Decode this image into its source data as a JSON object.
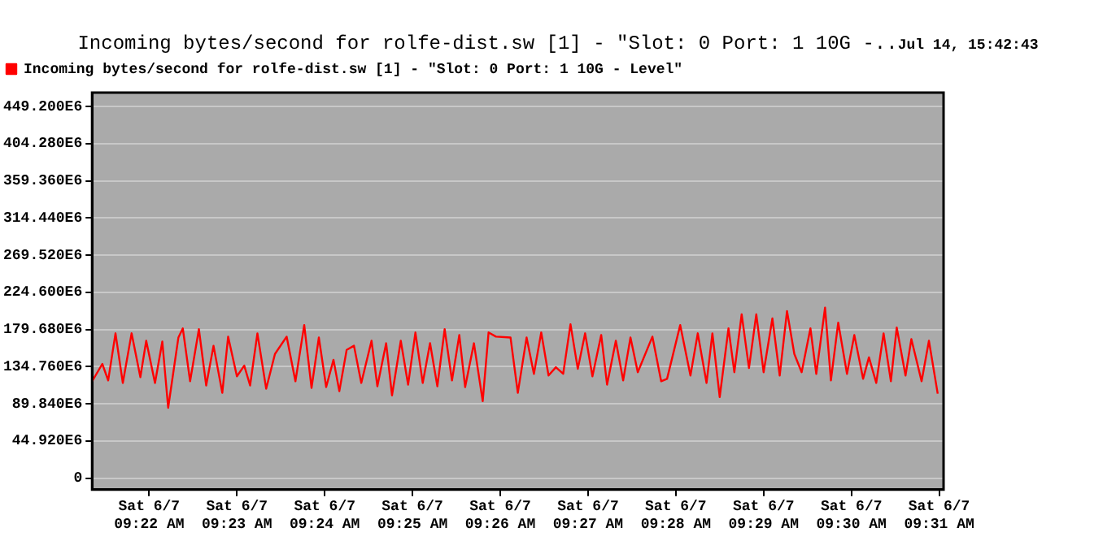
{
  "chart_data": {
    "type": "line",
    "title": "Incoming bytes/second for rolfe-dist.sw [1] - \"Slot: 0 Port: 1 10G -..",
    "subtitle": "Jul 14, 15:42:43",
    "x": [
      "--06-07T09:21:21",
      "--06-07T09:21:28",
      "--06-07T09:21:32",
      "--06-07T09:21:37",
      "--06-07T09:21:42",
      "--06-07T09:21:48",
      "--06-07T09:21:54",
      "--06-07T09:21:58",
      "--06-07T09:22:04",
      "--06-07T09:22:09",
      "--06-07T09:22:13",
      "--06-07T09:22:20",
      "--06-07T09:22:23",
      "--06-07T09:22:28",
      "--06-07T09:22:34",
      "--06-07T09:22:39",
      "--06-07T09:22:44",
      "--06-07T09:22:50",
      "--06-07T09:22:54",
      "--06-07T09:23:00",
      "--06-07T09:23:05",
      "--06-07T09:23:09",
      "--06-07T09:23:14",
      "--06-07T09:23:20",
      "--06-07T09:23:26",
      "--06-07T09:23:34",
      "--06-07T09:23:40",
      "--06-07T09:23:46",
      "--06-07T09:23:51",
      "--06-07T09:23:56",
      "--06-07T09:24:01",
      "--06-07T09:24:06",
      "--06-07T09:24:10",
      "--06-07T09:24:15",
      "--06-07T09:24:20",
      "--06-07T09:24:25",
      "--06-07T09:24:32",
      "--06-07T09:24:36",
      "--06-07T09:24:42",
      "--06-07T09:24:46",
      "--06-07T09:24:52",
      "--06-07T09:24:57",
      "--06-07T09:25:02",
      "--06-07T09:25:07",
      "--06-07T09:25:12",
      "--06-07T09:25:17",
      "--06-07T09:25:22",
      "--06-07T09:25:27",
      "--06-07T09:25:32",
      "--06-07T09:25:36",
      "--06-07T09:25:42",
      "--06-07T09:25:48",
      "--06-07T09:25:52",
      "--06-07T09:25:57",
      "--06-07T09:26:07",
      "--06-07T09:26:12",
      "--06-07T09:26:18",
      "--06-07T09:26:23",
      "--06-07T09:26:28",
      "--06-07T09:26:33",
      "--06-07T09:26:38",
      "--06-07T09:26:43",
      "--06-07T09:26:48",
      "--06-07T09:26:53",
      "--06-07T09:26:58",
      "--06-07T09:27:03",
      "--06-07T09:27:09",
      "--06-07T09:27:13",
      "--06-07T09:27:19",
      "--06-07T09:27:24",
      "--06-07T09:27:29",
      "--06-07T09:27:34",
      "--06-07T09:27:44",
      "--06-07T09:27:50",
      "--06-07T09:27:54",
      "--06-07T09:28:03",
      "--06-07T09:28:10",
      "--06-07T09:28:15",
      "--06-07T09:28:21",
      "--06-07T09:28:25",
      "--06-07T09:28:30",
      "--06-07T09:28:36",
      "--06-07T09:28:40",
      "--06-07T09:28:45",
      "--06-07T09:28:50",
      "--06-07T09:28:55",
      "--06-07T09:29:00",
      "--06-07T09:29:06",
      "--06-07T09:29:11",
      "--06-07T09:29:16",
      "--06-07T09:29:21",
      "--06-07T09:29:26",
      "--06-07T09:29:32",
      "--06-07T09:29:36",
      "--06-07T09:29:42",
      "--06-07T09:29:46",
      "--06-07T09:29:51",
      "--06-07T09:29:57",
      "--06-07T09:30:02",
      "--06-07T09:30:08",
      "--06-07T09:30:12",
      "--06-07T09:30:17",
      "--06-07T09:30:22",
      "--06-07T09:30:27",
      "--06-07T09:30:31",
      "--06-07T09:30:37",
      "--06-07T09:30:41",
      "--06-07T09:30:48",
      "--06-07T09:30:53",
      "--06-07T09:30:59"
    ],
    "series": [
      {
        "name": "Incoming bytes/second for rolfe-dist.sw [1] - \"Slot: 0 Port: 1 10G - Level\"",
        "color": "#ff0000",
        "values": [
          117000000,
          138000000,
          118000000,
          175000000,
          115000000,
          175000000,
          122000000,
          166000000,
          115000000,
          165000000,
          85000000,
          170000000,
          181000000,
          117000000,
          180000000,
          112000000,
          160000000,
          103000000,
          171000000,
          123000000,
          136000000,
          112000000,
          175000000,
          108000000,
          150000000,
          171000000,
          117000000,
          185000000,
          109000000,
          170000000,
          110000000,
          143000000,
          105000000,
          155000000,
          160000000,
          115000000,
          166000000,
          111000000,
          163000000,
          100000000,
          166000000,
          113000000,
          176000000,
          115000000,
          163000000,
          111000000,
          180000000,
          118000000,
          173000000,
          110000000,
          163000000,
          93000000,
          176000000,
          171000000,
          170000000,
          103000000,
          170000000,
          126000000,
          176000000,
          124000000,
          134000000,
          126000000,
          186000000,
          132000000,
          175000000,
          123000000,
          173000000,
          113000000,
          166000000,
          118000000,
          170000000,
          128000000,
          171000000,
          117000000,
          120000000,
          185000000,
          124000000,
          175000000,
          115000000,
          175000000,
          98000000,
          181000000,
          128000000,
          198000000,
          133000000,
          198000000,
          128000000,
          193000000,
          124000000,
          202000000,
          150000000,
          128000000,
          181000000,
          126000000,
          206000000,
          118000000,
          188000000,
          126000000,
          173000000,
          120000000,
          146000000,
          115000000,
          175000000,
          117000000,
          182000000,
          124000000,
          168000000,
          117000000,
          166000000,
          102000000
        ]
      }
    ],
    "xlim": [
      "--06-07T09:21:21",
      "--06-07T09:31:03"
    ],
    "xticks": [
      {
        "value": "--06-07T09:22",
        "label": "Sat 6/7\n09:22 AM"
      },
      {
        "value": "--06-07T09:23",
        "label": "Sat 6/7\n09:23 AM"
      },
      {
        "value": "--06-07T09:24",
        "label": "Sat 6/7\n09:24 AM"
      },
      {
        "value": "--06-07T09:25",
        "label": "Sat 6/7\n09:25 AM"
      },
      {
        "value": "--06-07T09:26",
        "label": "Sat 6/7\n09:26 AM"
      },
      {
        "value": "--06-07T09:27",
        "label": "Sat 6/7\n09:27 AM"
      },
      {
        "value": "--06-07T09:28",
        "label": "Sat 6/7\n09:28 AM"
      },
      {
        "value": "--06-07T09:29",
        "label": "Sat 6/7\n09:29 AM"
      },
      {
        "value": "--06-07T09:30",
        "label": "Sat 6/7\n09:30 AM"
      },
      {
        "value": "--06-07T09:31",
        "label": "Sat 6/7\n09:31 AM"
      }
    ],
    "ylim": [
      -14000000,
      466000000
    ],
    "yticks": [
      0,
      {
        "value": 44920000,
        "label": "44.920E6"
      },
      {
        "value": 89840000,
        "label": "89.840E6"
      },
      {
        "value": 134760000,
        "label": "134.760E6"
      },
      {
        "value": 179680000,
        "label": "179.680E6"
      },
      {
        "value": 224600000,
        "label": "224.600E6"
      },
      {
        "value": 269520000,
        "label": "269.520E6"
      },
      {
        "value": 314440000,
        "label": "314.440E6"
      },
      {
        "value": 359360000,
        "label": "359.360E6"
      },
      {
        "value": 404280000,
        "label": "404.280E6"
      },
      {
        "value": 449200000,
        "label": "449.200E6"
      }
    ],
    "grid": "y",
    "legend": "top left",
    "marker": "none",
    "line_style": "solid"
  }
}
